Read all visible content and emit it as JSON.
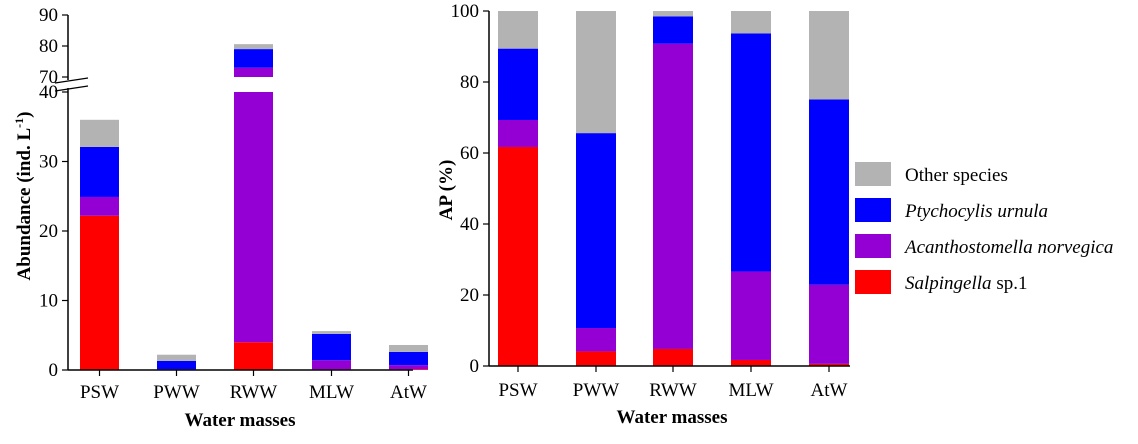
{
  "colors": {
    "Other species": "#b3b3b3",
    "Ptychocylis urnula": "#0000ff",
    "Acanthostomella norvegica": "#9400d3",
    "Salpingella sp.1": "#ff0000"
  },
  "chart_data": [
    {
      "type": "bar",
      "stacked": true,
      "title": "",
      "xlabel": "Water masses",
      "ylabel": "Abundance (ind. L-1)",
      "ylabel_main": "Abundance (ind. L",
      "ylabel_sup": "-1",
      "ylabel_close": ")",
      "axis_break": {
        "lower_range": [
          0,
          40
        ],
        "upper_range": [
          70,
          90
        ]
      },
      "yticks_lower": [
        "0",
        "10",
        "20",
        "30",
        "40"
      ],
      "yticks_upper": [
        "70",
        "80",
        "90"
      ],
      "categories": [
        "PSW",
        "PWW",
        "RWW",
        "MLW",
        "AtW"
      ],
      "series": [
        {
          "name": "Salpingella sp.1",
          "values": [
            22.2,
            0.0,
            4.0,
            0.1,
            0.1
          ]
        },
        {
          "name": "Acanthostomella norvegica",
          "values": [
            2.7,
            0.1,
            69.0,
            1.3,
            0.6
          ]
        },
        {
          "name": "Ptychocylis urnula",
          "values": [
            7.2,
            1.2,
            6.0,
            3.8,
            1.9
          ]
        },
        {
          "name": "Other species",
          "values": [
            3.9,
            0.9,
            1.6,
            0.4,
            1.0
          ]
        }
      ]
    },
    {
      "type": "bar",
      "stacked": true,
      "title": "",
      "xlabel": "Water masses",
      "ylabel": "AP (%)",
      "ylim": [
        0,
        100
      ],
      "yticks": [
        "0",
        "20",
        "40",
        "60",
        "80",
        "100"
      ],
      "categories": [
        "PSW",
        "PWW",
        "RWW",
        "MLW",
        "AtW"
      ],
      "series": [
        {
          "name": "Salpingella sp.1",
          "values": [
            61.7,
            4.1,
            4.8,
            1.7,
            0.6
          ]
        },
        {
          "name": "Acanthostomella norvegica",
          "values": [
            7.6,
            6.6,
            86.0,
            24.9,
            22.3
          ]
        },
        {
          "name": "Ptychocylis urnula",
          "values": [
            20.1,
            54.9,
            7.7,
            67.1,
            52.2
          ]
        },
        {
          "name": "Other species",
          "values": [
            10.6,
            34.4,
            1.5,
            6.3,
            24.9
          ]
        }
      ],
      "legend": {
        "placement": "right",
        "entries": [
          {
            "name": "Other species",
            "label_main": "Other species",
            "label_suffix": "",
            "italic": false
          },
          {
            "name": "Ptychocylis urnula",
            "label_main": "Ptychocylis urnula",
            "label_suffix": "",
            "italic": true
          },
          {
            "name": "Acanthostomella norvegica",
            "label_main": "Acanthostomella norvegica",
            "label_suffix": "",
            "italic": true
          },
          {
            "name": "Salpingella sp.1",
            "label_main": "Salpingella",
            "label_suffix": " sp.1",
            "italic": true
          }
        ]
      }
    }
  ]
}
